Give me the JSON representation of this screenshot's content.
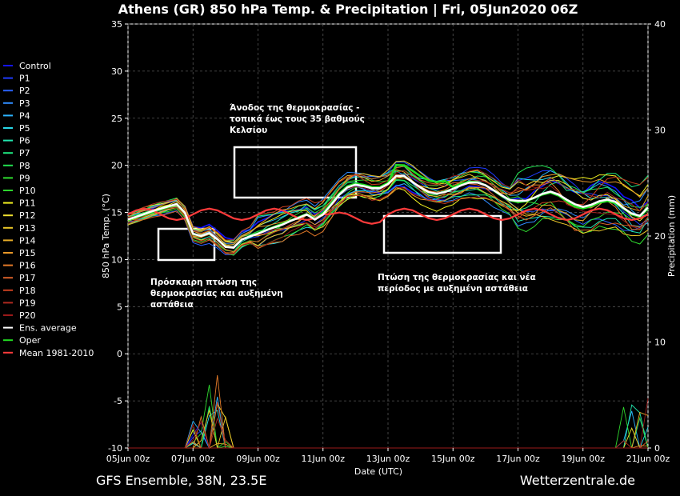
{
  "chart_data": {
    "type": "line",
    "title": "Athens  (GR)  850 hPa Temp. & Precipitation | Fri, 05Jun2020 06Z",
    "xlabel": "Date (UTC)",
    "ylabel_left": "850 hPa Temp. (°C)",
    "ylabel_right": "Precipitation (mm)",
    "ylim_left": [
      -10,
      35
    ],
    "ylim_right": [
      0,
      40
    ],
    "grid": true,
    "legend_placement": "left",
    "x_tick_labels": [
      "05Jun 00z",
      "07Jun 00z",
      "09Jun 00z",
      "11Jun 00z",
      "13Jun 00z",
      "15Jun 00z",
      "17Jun 00z",
      "19Jun 00z",
      "21Jun 00z"
    ],
    "y_tick_labels_left": [
      "-10",
      "-5",
      "0",
      "5",
      "10",
      "15",
      "20",
      "25",
      "30",
      "35"
    ],
    "y_tick_labels_right": [
      "0",
      "10",
      "20",
      "30",
      "40"
    ],
    "x_start": "05Jun 00z",
    "x_end": "21Jun 00z",
    "step_hours": 6,
    "series": [
      {
        "name": "Control",
        "color": "#1414ff"
      },
      {
        "name": "P1",
        "color": "#1f3bff"
      },
      {
        "name": "P2",
        "color": "#2a62ff"
      },
      {
        "name": "P3",
        "color": "#2f8cff"
      },
      {
        "name": "P4",
        "color": "#2cb4ff"
      },
      {
        "name": "P5",
        "color": "#28d8e8"
      },
      {
        "name": "P6",
        "color": "#22e8b0"
      },
      {
        "name": "P7",
        "color": "#1fe880"
      },
      {
        "name": "P8",
        "color": "#22e050"
      },
      {
        "name": "P9",
        "color": "#30e030"
      },
      {
        "name": "P10",
        "color": "#2ed62e"
      },
      {
        "name": "P11",
        "color": "#f2f020"
      },
      {
        "name": "P12",
        "color": "#f0e030"
      },
      {
        "name": "P13",
        "color": "#ecc828"
      },
      {
        "name": "P14",
        "color": "#e8ae28"
      },
      {
        "name": "P15",
        "color": "#e89828"
      },
      {
        "name": "P16",
        "color": "#e47a28"
      },
      {
        "name": "P17",
        "color": "#d86028"
      },
      {
        "name": "P18",
        "color": "#c84020"
      },
      {
        "name": "P19",
        "color": "#b02a20"
      },
      {
        "name": "P20",
        "color": "#9a1a1a"
      },
      {
        "name": "Ens. average",
        "color": "#ffffff"
      },
      {
        "name": "Oper",
        "color": "#22dd22"
      },
      {
        "name": "Mean 1981-2010",
        "color": "#ff3b3b"
      }
    ],
    "annotations": [
      "Άνοδος της θερμοκρασίας -",
      "τοπικά έως τους 35 βαθμούς",
      "Κελσίου",
      "Πρόσκαιρη πτώση της",
      "θερμοκρασίας και αυξημένη",
      "αστάθεια",
      "Πτώση της θερμοκρασίας και νέα",
      "περίοδος με αυξημένη αστάθεια"
    ]
  },
  "footer": {
    "left": "GFS Ensemble, 38N, 23.5E",
    "right": "Wetterzentrale.de"
  }
}
